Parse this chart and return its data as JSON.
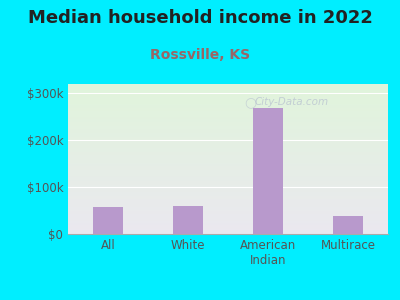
{
  "title": "Median household income in 2022",
  "subtitle": "Rossville, KS",
  "subtitle_color": "#996666",
  "categories": [
    "All",
    "White",
    "American\nIndian",
    "Multirace"
  ],
  "values": [
    58000,
    60000,
    268000,
    38000
  ],
  "bar_color": "#b899cc",
  "ylim": [
    0,
    320000
  ],
  "yticks": [
    0,
    100000,
    200000,
    300000
  ],
  "ytick_labels": [
    "$0",
    "$100k",
    "$200k",
    "$300k"
  ],
  "bg_outer": "#00eeff",
  "bg_chart_topleft": "#dff0dc",
  "bg_chart_bottomright": "#e8e8f0",
  "title_fontsize": 13,
  "subtitle_fontsize": 10,
  "axis_label_fontsize": 8.5,
  "watermark": "City-Data.com"
}
